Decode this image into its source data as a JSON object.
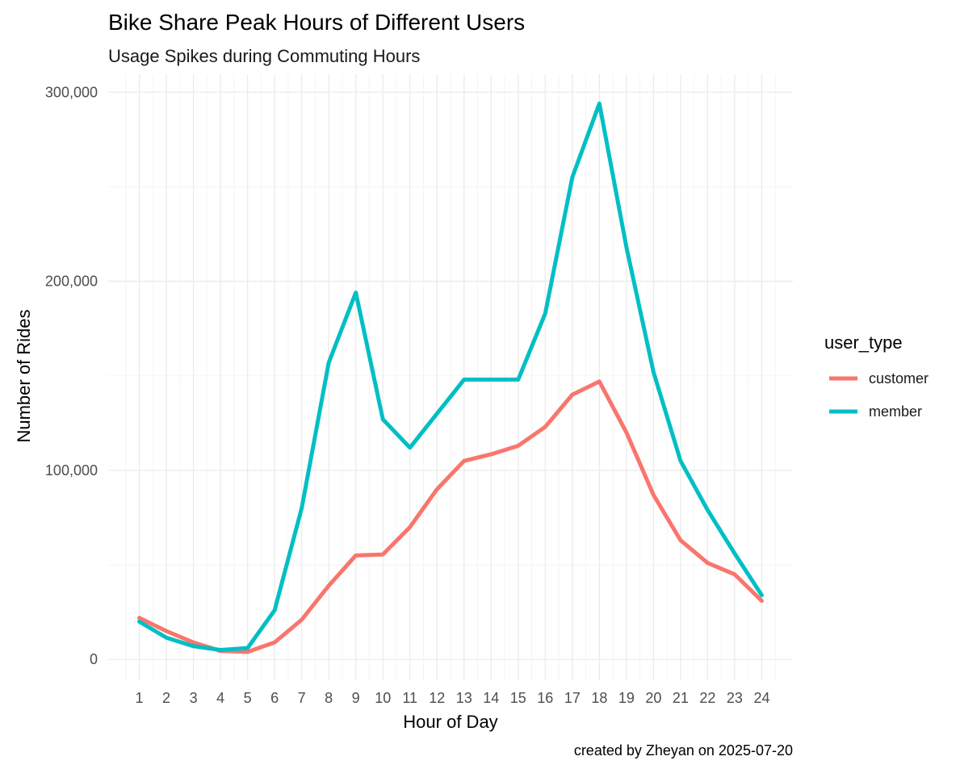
{
  "chart_data": {
    "type": "line",
    "title": "Bike Share Peak Hours of Different Users",
    "subtitle": "Usage Spikes during Commuting Hours",
    "xlabel": "Hour of Day",
    "ylabel": "Number of Rides",
    "caption": "created by Zheyan on 2025-07-20",
    "x": [
      1,
      2,
      3,
      4,
      5,
      6,
      7,
      8,
      9,
      10,
      11,
      12,
      13,
      14,
      15,
      16,
      17,
      18,
      19,
      20,
      21,
      22,
      23,
      24
    ],
    "xticks": [
      "1",
      "2",
      "3",
      "4",
      "5",
      "6",
      "7",
      "8",
      "9",
      "10",
      "11",
      "12",
      "13",
      "14",
      "15",
      "16",
      "17",
      "18",
      "19",
      "20",
      "21",
      "22",
      "23",
      "24"
    ],
    "ylim": [
      -11000,
      300000
    ],
    "yticks": [
      0,
      100000,
      200000,
      300000
    ],
    "ytick_labels": [
      "0",
      "100,000",
      "200,000",
      "300,000"
    ],
    "grid": true,
    "legend": {
      "title": "user_type",
      "position": "right"
    },
    "series": [
      {
        "name": "customer",
        "color": "#F8766D",
        "values": [
          22000,
          15000,
          9000,
          4500,
          4000,
          9000,
          21000,
          39000,
          55000,
          55500,
          70000,
          90000,
          105000,
          108500,
          113000,
          123000,
          140000,
          147000,
          120000,
          87000,
          63000,
          51000,
          45000,
          31000
        ]
      },
      {
        "name": "member",
        "color": "#00BFC4",
        "values": [
          20000,
          11500,
          7000,
          5000,
          6000,
          26000,
          80000,
          157000,
          194000,
          127000,
          112000,
          130000,
          148000,
          148000,
          148000,
          183000,
          255000,
          294000,
          218000,
          152000,
          105000,
          79000,
          56000,
          34000
        ]
      }
    ]
  }
}
